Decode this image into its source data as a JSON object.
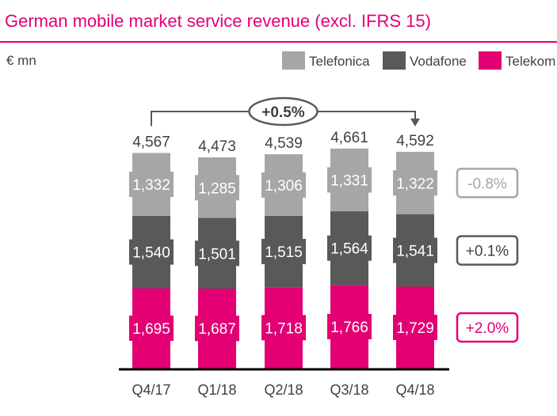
{
  "title": "German mobile market service revenue (excl. IFRS 15)",
  "unit": "€ mn",
  "colors": {
    "accent": "#e20074",
    "telefonica": "#a6a6a6",
    "vodafone": "#595959",
    "telekom": "#e20074"
  },
  "chart_data": {
    "type": "bar",
    "stacked": true,
    "categories": [
      "Q4/17",
      "Q1/18",
      "Q2/18",
      "Q3/18",
      "Q4/18"
    ],
    "series": [
      {
        "name": "Telekom",
        "color": "#e20074",
        "values": [
          1695,
          1687,
          1718,
          1766,
          1729
        ],
        "labels": [
          "1,695",
          "1,687",
          "1,718",
          "1,766",
          "1,729"
        ],
        "change": "+2.0%"
      },
      {
        "name": "Vodafone",
        "color": "#595959",
        "values": [
          1540,
          1501,
          1515,
          1564,
          1541
        ],
        "labels": [
          "1,540",
          "1,501",
          "1,515",
          "1,564",
          "1,541"
        ],
        "change": "+0.1%"
      },
      {
        "name": "Telefonica",
        "color": "#a6a6a6",
        "values": [
          1332,
          1285,
          1306,
          1331,
          1322
        ],
        "labels": [
          "1,332",
          "1,285",
          "1,306",
          "1,331",
          "1,322"
        ],
        "change": "-0.8%"
      }
    ],
    "totals": [
      4567,
      4473,
      4539,
      4661,
      4592
    ],
    "total_labels": [
      "4,567",
      "4,473",
      "4,539",
      "4,661",
      "4,592"
    ],
    "legend": {
      "placement": "top-right",
      "order": [
        "Telefonica",
        "Vodafone",
        "Telekom"
      ]
    },
    "annotation": {
      "label": "+0.5%",
      "from": "Q4/17",
      "to": "Q4/18"
    },
    "ylim": [
      0,
      4700
    ],
    "grid": false
  }
}
